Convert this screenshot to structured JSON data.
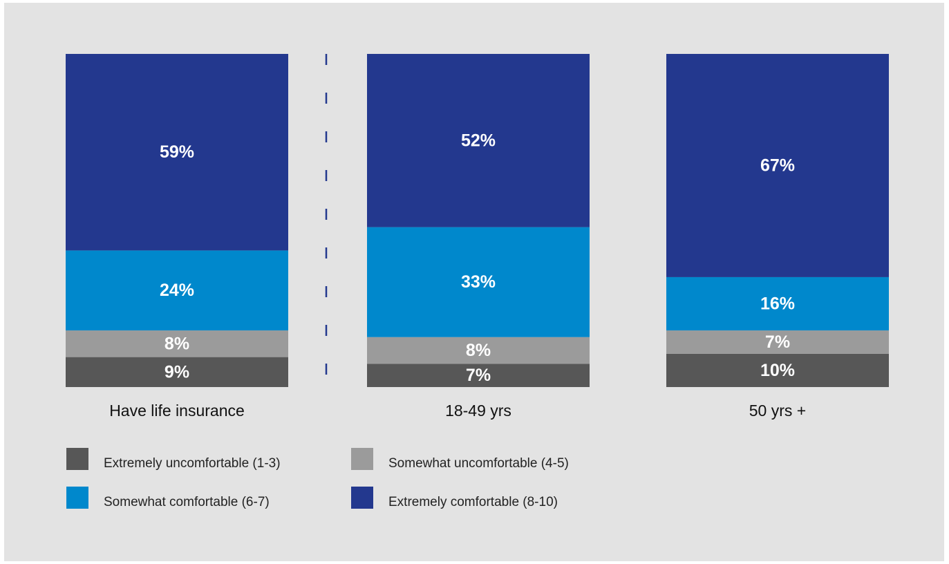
{
  "chart_data": {
    "type": "bar",
    "stacked": true,
    "normalized_percent": true,
    "categories": [
      "Have life insurance",
      "18-49 yrs",
      "50 yrs +"
    ],
    "series": [
      {
        "name": "Extremely uncomfortable (1-3)",
        "color": "#575757",
        "values": [
          9,
          7,
          10
        ],
        "labels": [
          "9%",
          "7%",
          "10%"
        ]
      },
      {
        "name": "Somewhat uncomfortable (4-5)",
        "color": "#9b9b9b",
        "values": [
          8,
          8,
          7
        ],
        "labels": [
          "8%",
          "8%",
          "7%"
        ]
      },
      {
        "name": "Somewhat comfortable (6-7)",
        "color": "#0088cc",
        "values": [
          24,
          33,
          16
        ],
        "labels": [
          "24%",
          "33%",
          "16%"
        ]
      },
      {
        "name": "Extremely comfortable (8-10)",
        "color": "#23388e",
        "values": [
          59,
          52,
          67
        ],
        "labels": [
          "59%",
          "52%",
          "67%"
        ]
      }
    ],
    "ylim": [
      0,
      100
    ],
    "grid": false,
    "separator": "dashed vertical line between first and second bar",
    "legend_position": "bottom-left",
    "title": "",
    "xlabel": "",
    "ylabel": ""
  }
}
